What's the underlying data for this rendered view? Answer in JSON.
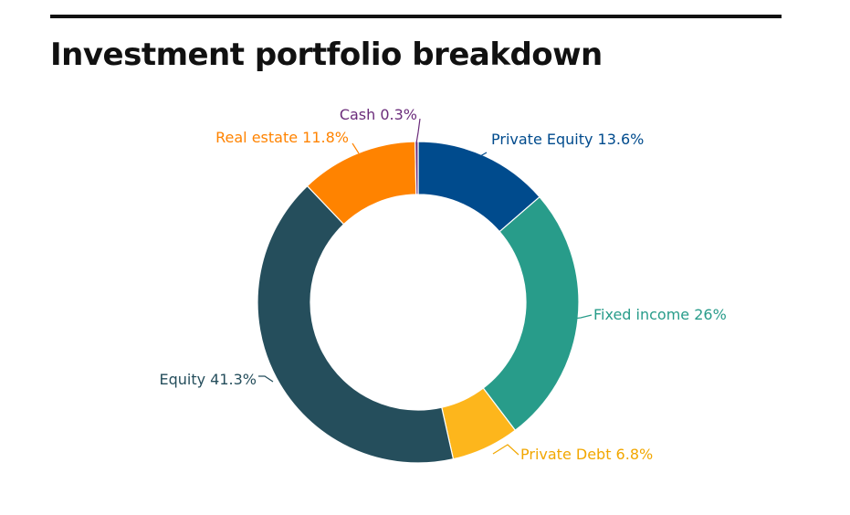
{
  "title": "Investment portfolio breakdown",
  "chart_data": {
    "type": "pie",
    "title": "Investment portfolio breakdown",
    "donut": true,
    "slices": [
      {
        "name": "Private Equity",
        "value": 13.6,
        "label": "Private Equity 13.6%",
        "color": "#004b8d"
      },
      {
        "name": "Fixed income",
        "value": 26,
        "label": "Fixed income 26%",
        "color": "#289c8a"
      },
      {
        "name": "Private Debt",
        "value": 6.8,
        "label": "Private Debt 6.8%",
        "color": "#fdb61c"
      },
      {
        "name": "Equity",
        "value": 41.3,
        "label": "Equity 41.3%",
        "color": "#254e5c"
      },
      {
        "name": "Real estate",
        "value": 11.8,
        "label": "Real estate 11.8%",
        "color": "#ff8300"
      },
      {
        "name": "Cash",
        "value": 0.3,
        "label": "Cash 0.3%",
        "color": "#6b2c7b"
      }
    ],
    "label_colors": [
      "#004b8d",
      "#289c8a",
      "#f2a700",
      "#254e5c",
      "#ff8300",
      "#6b2c7b"
    ]
  }
}
